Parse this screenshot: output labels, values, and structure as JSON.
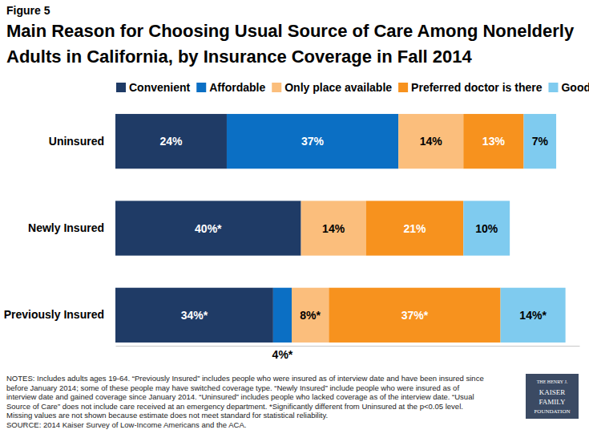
{
  "chart_data": {
    "type": "bar",
    "orientation": "horizontal",
    "stacked": true,
    "data_labels": true,
    "tick_labels": false,
    "grid": false,
    "legend": "top",
    "title": "Main Reason for Choosing Usual Source of Care Among Nonelderly Adults in California, by Insurance Coverage in Fall 2014",
    "categories": [
      "Uninsured",
      "Newly Insured",
      "Previously Insured"
    ],
    "series": [
      {
        "name": "Convenient",
        "color": "#1F3B66",
        "values": [
          24,
          40,
          34
        ],
        "value_labels": [
          "24%",
          "40%*",
          "34%*"
        ]
      },
      {
        "name": "Affordable",
        "color": "#0B6FC4",
        "values": [
          37,
          null,
          4
        ],
        "value_labels": [
          "37%",
          null,
          "4%*"
        ]
      },
      {
        "name": "Only place available",
        "color": "#FBBE7C",
        "values": [
          14,
          14,
          8
        ],
        "value_labels": [
          "14%",
          "14%",
          "8%*"
        ]
      },
      {
        "name": "Preferred doctor is there",
        "color": "#F7921E",
        "values": [
          13,
          21,
          37
        ],
        "value_labels": [
          "13%",
          "21%",
          "37%*"
        ]
      },
      {
        "name": "Good Reputation",
        "color": "#7FCBEF",
        "values": [
          7,
          10,
          14
        ],
        "value_labels": [
          "7%",
          "10%",
          "14%*"
        ]
      }
    ],
    "xlim": [
      0,
      100
    ],
    "xticks": [],
    "annotations": {
      "figure": "Figure 5",
      "notes": [
        "NOTES: Includes adults ages 19-64. “Previously Insured” includes people who were insured as of interview date and have been insured since",
        "before January 2014; some of these people may have switched coverage type. “Newly Insured” include people who were insured as of",
        "interview date and gained coverage since January 2014. “Uninsured” includes people who lacked coverage as of the interview date. “Usual",
        "Source of Care” does not include care received at an emergency department. *Significantly different from Uninsured at the p<0.05 level.",
        "Missing values are not shown because estimate does not meet standard for statistical reliability."
      ],
      "source": "SOURCE: 2014 Kaiser Survey of Low-Income Americans and the ACA.",
      "logo": [
        "THE HENRY J.",
        "KAISER",
        "FAMILY",
        "FOUNDATION"
      ]
    }
  }
}
